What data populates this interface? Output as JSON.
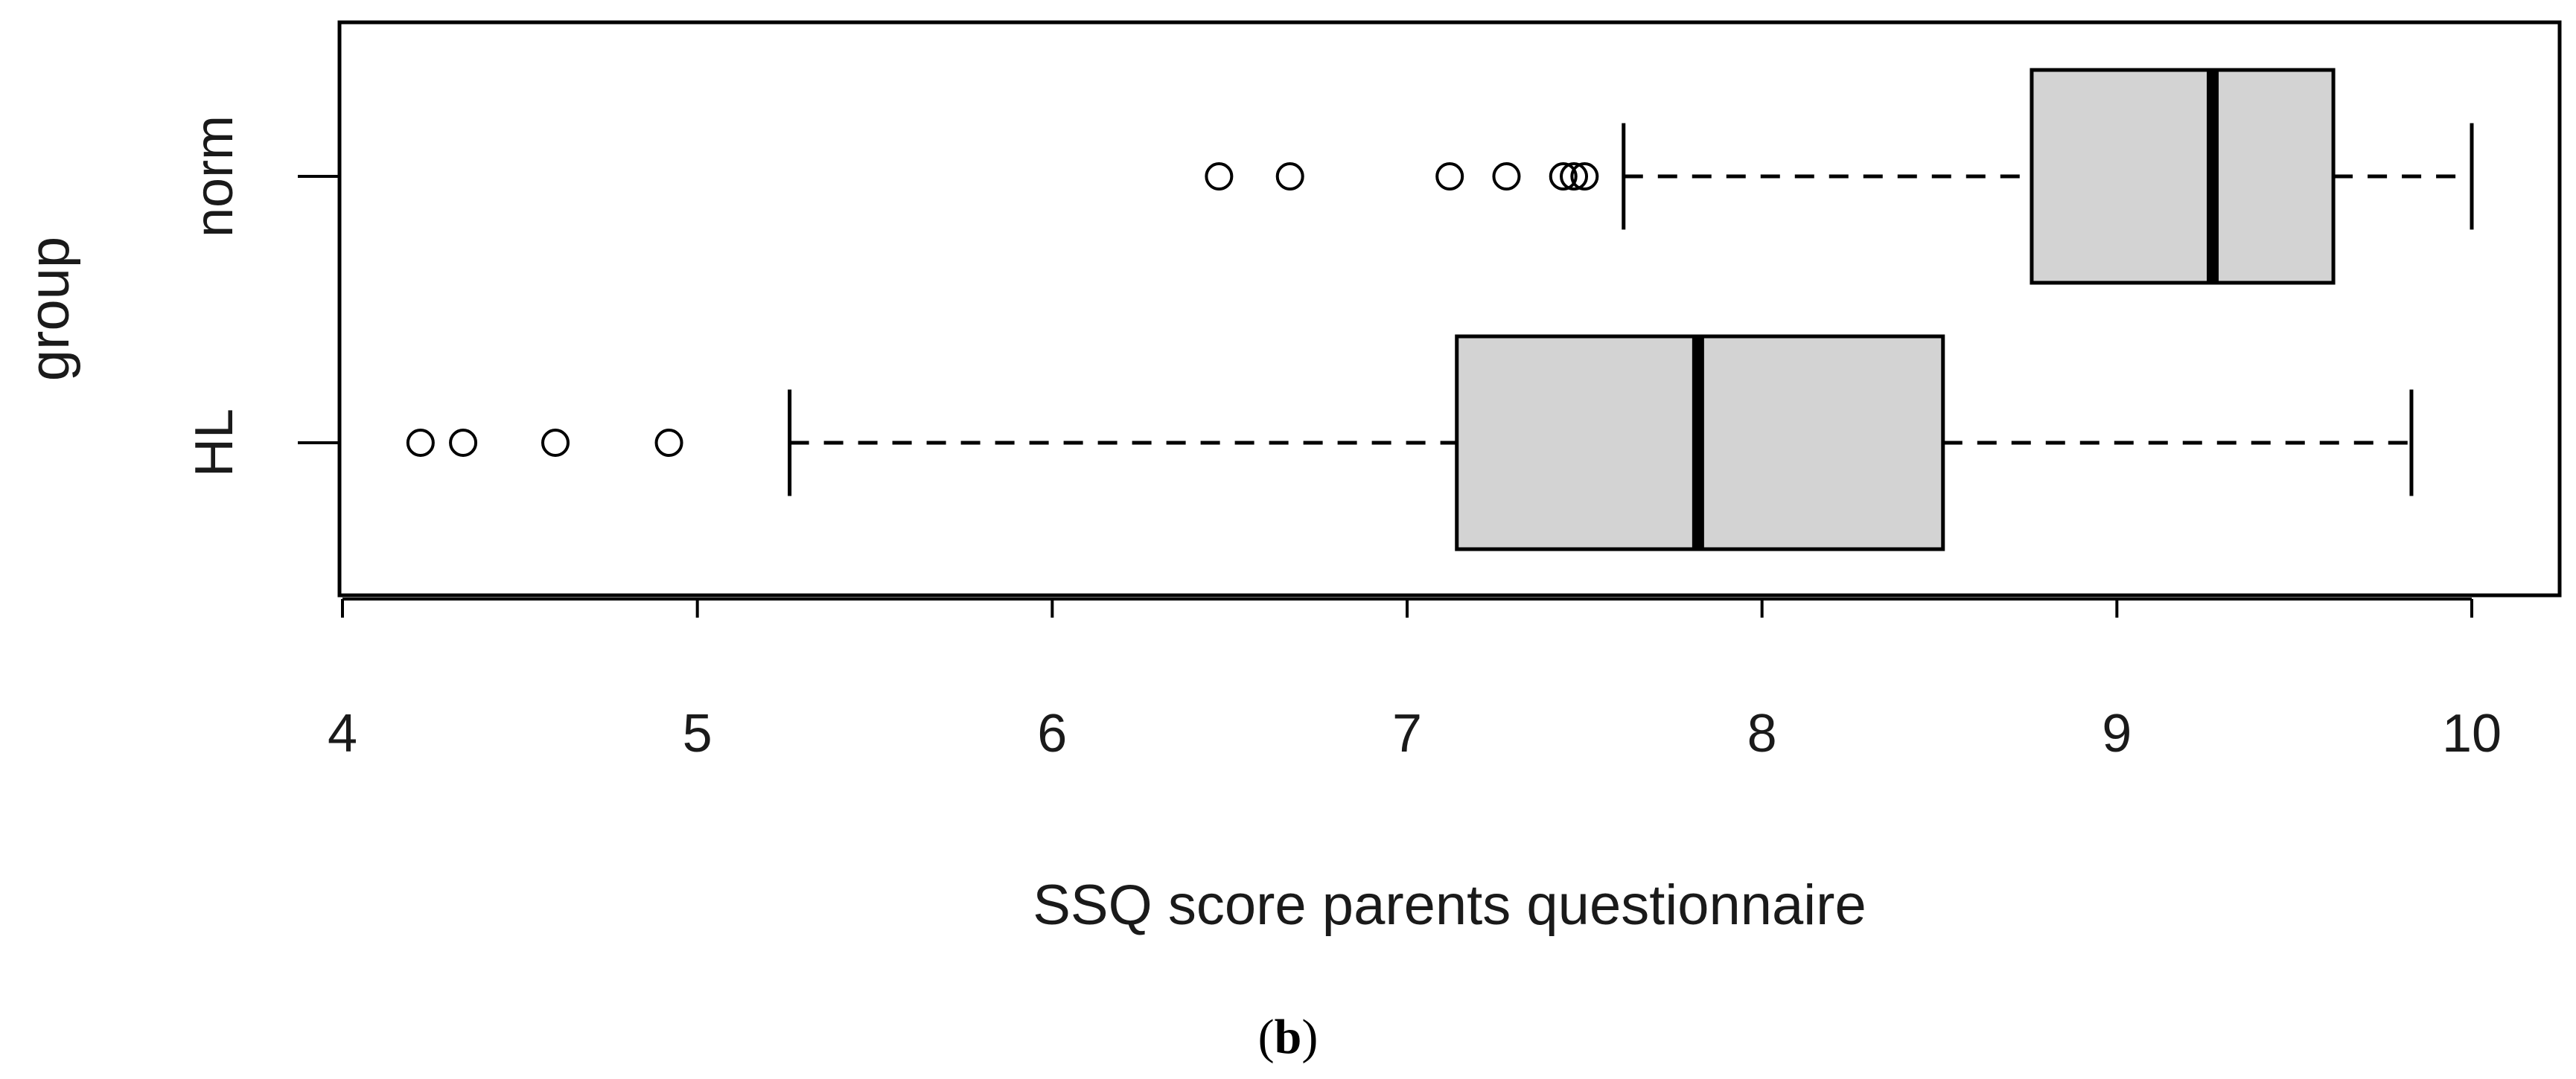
{
  "chart_data": {
    "type": "boxplot",
    "orientation": "horizontal",
    "title": "",
    "xlabel": "SSQ score parents questionnaire",
    "ylabel": "group",
    "xlim": [
      4,
      10
    ],
    "xticks": [
      4,
      5,
      6,
      7,
      8,
      9,
      10
    ],
    "grid": false,
    "categories": [
      "norm",
      "HL"
    ],
    "box_color": "#d3d3d3",
    "series": [
      {
        "name": "norm",
        "whisker_low": 7.61,
        "q1": 8.76,
        "median": 9.27,
        "q3": 9.61,
        "whisker_high": 10.0,
        "outliers": [
          6.47,
          6.67,
          7.12,
          7.28,
          7.44,
          7.47,
          7.5
        ]
      },
      {
        "name": "HL",
        "whisker_low": 5.26,
        "q1": 7.14,
        "median": 7.82,
        "q3": 8.51,
        "whisker_high": 9.83,
        "outliers": [
          4.22,
          4.34,
          4.6,
          4.92
        ]
      }
    ]
  },
  "caption": {
    "open": "(",
    "letter": "b",
    "close": ")"
  }
}
